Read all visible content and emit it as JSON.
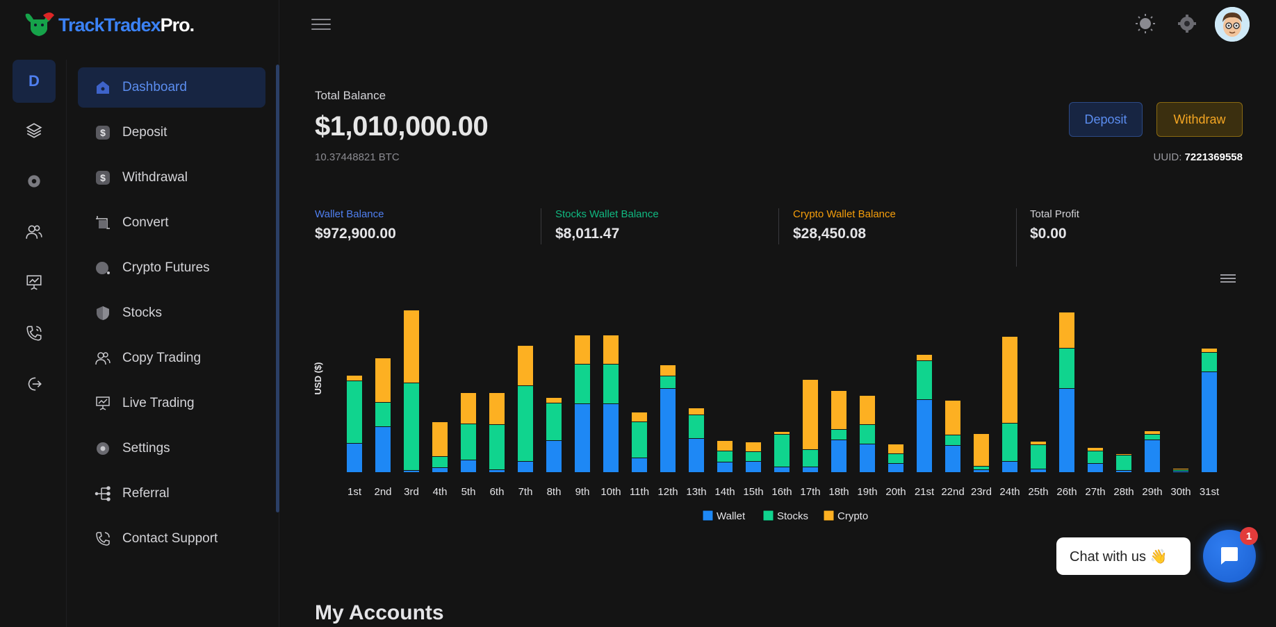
{
  "brand": {
    "name_part1": "TrackTradex",
    "name_part2": "Pro."
  },
  "rail": {
    "active_letter": "D"
  },
  "sidebar": {
    "items": [
      {
        "label": "Dashboard",
        "icon": "home-icon",
        "active": true
      },
      {
        "label": "Deposit",
        "icon": "dollar-icon"
      },
      {
        "label": "Withdrawal",
        "icon": "dollar-icon"
      },
      {
        "label": "Convert",
        "icon": "crop-icon"
      },
      {
        "label": "Crypto Futures",
        "icon": "circle-icon"
      },
      {
        "label": "Stocks",
        "icon": "shield-icon"
      },
      {
        "label": "Copy Trading",
        "icon": "users-icon"
      },
      {
        "label": "Live Trading",
        "icon": "presentation-icon"
      },
      {
        "label": "Settings",
        "icon": "gear-icon"
      },
      {
        "label": "Referral",
        "icon": "referral-icon"
      },
      {
        "label": "Contact Support",
        "icon": "phone-icon"
      }
    ]
  },
  "balance": {
    "label": "Total Balance",
    "value": "$1,010,000.00",
    "btc": "10.37448821 BTC",
    "deposit_label": "Deposit",
    "withdraw_label": "Withdraw",
    "uuid_label": "UUID:",
    "uuid_value": "7221369558"
  },
  "stats": [
    {
      "label": "Wallet Balance",
      "value": "$972,900.00",
      "color": "#4f7ff0"
    },
    {
      "label": "Stocks Wallet Balance",
      "value": "$8,011.47",
      "color": "#10b981"
    },
    {
      "label": "Crypto Wallet Balance",
      "value": "$28,450.08",
      "color": "#f59e0b"
    },
    {
      "label": "Total Profit",
      "value": "$0.00",
      "color": "#d4d4d8"
    }
  ],
  "chart_data": {
    "type": "bar",
    "stacked": true,
    "ylabel": "USD ($)",
    "categories": [
      "1st",
      "2nd",
      "3rd",
      "4th",
      "5th",
      "6th",
      "7th",
      "8th",
      "9th",
      "10th",
      "11th",
      "12th",
      "13th",
      "14th",
      "15th",
      "16th",
      "17th",
      "18th",
      "19th",
      "20th",
      "21st",
      "22nd",
      "23rd",
      "24th",
      "25th",
      "26th",
      "27th",
      "28th",
      "29th",
      "30th",
      "31st"
    ],
    "series": [
      {
        "name": "Wallet",
        "color": "#1e88f5",
        "values": [
          42,
          66,
          3,
          7,
          18,
          4,
          16,
          46,
          99,
          99,
          21,
          121,
          49,
          15,
          16,
          8,
          8,
          47,
          41,
          13,
          105,
          39,
          4,
          16,
          5,
          121,
          13,
          3,
          47,
          2,
          145
        ]
      },
      {
        "name": "Stocks",
        "color": "#10d48e",
        "values": [
          90,
          35,
          126,
          16,
          52,
          65,
          109,
          54,
          57,
          57,
          52,
          18,
          34,
          16,
          14,
          47,
          25,
          15,
          28,
          14,
          56,
          15,
          5,
          55,
          35,
          58,
          18,
          22,
          8,
          2,
          28
        ]
      },
      {
        "name": "Crypto",
        "color": "#fdb022",
        "values": [
          8,
          64,
          105,
          50,
          45,
          46,
          58,
          8,
          42,
          42,
          14,
          16,
          10,
          15,
          14,
          4,
          101,
          56,
          42,
          14,
          9,
          50,
          47,
          125,
          5,
          52,
          5,
          2,
          5,
          2,
          6
        ]
      }
    ],
    "ylim": [
      0,
      240
    ],
    "legend_position": "bottom",
    "grid": false
  },
  "chat": {
    "label": "Chat with us 👋",
    "badge": "1"
  },
  "sections": {
    "my_accounts": "My Accounts"
  },
  "theme": {
    "accent": "#3b82f6",
    "warning": "#f5a623",
    "background": "#141414"
  }
}
